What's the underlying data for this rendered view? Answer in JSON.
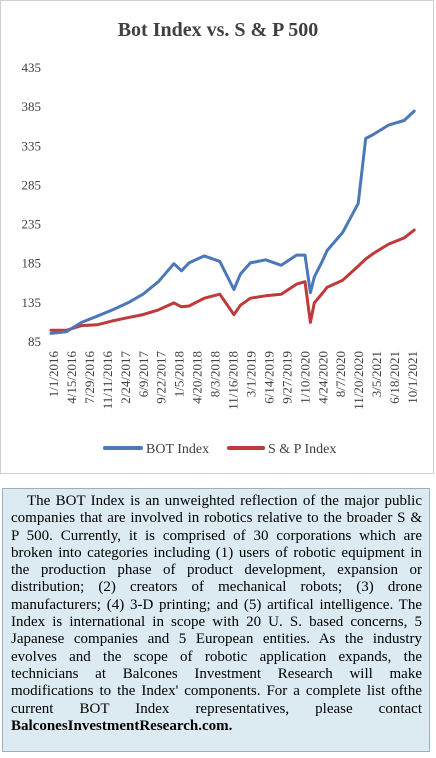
{
  "chart_data": {
    "type": "line",
    "title": "Bot Index vs. S & P 500",
    "xlabel": "",
    "ylabel": "",
    "ylim": [
      85,
      435
    ],
    "yticks": [
      85,
      135,
      185,
      235,
      285,
      335,
      385,
      435
    ],
    "grid": false,
    "legend_position": "bottom",
    "xtick_labels": [
      "1/1/2016",
      "4/15/2016",
      "7/29/2016",
      "11/11/2016",
      "2/24/2017",
      "6/9/2017",
      "9/22/2017",
      "1/5/2018",
      "4/20/2018",
      "8/3/2018",
      "11/16/2018",
      "3/1/2019",
      "6/14/2019",
      "9/27/2019",
      "1/10/2020",
      "4/24/2020",
      "8/7/2020",
      "11/20/2020",
      "3/5/2021",
      "6/18/2021",
      "10/1/2021"
    ],
    "x_dates": [
      "2016-01-01",
      "2016-04-01",
      "2016-07-01",
      "2016-10-01",
      "2017-01-01",
      "2017-04-01",
      "2017-07-01",
      "2017-10-01",
      "2018-01-01",
      "2018-02-15",
      "2018-04-01",
      "2018-07-01",
      "2018-10-01",
      "2018-12-24",
      "2019-02-01",
      "2019-04-01",
      "2019-07-01",
      "2019-10-01",
      "2020-01-01",
      "2020-02-20",
      "2020-03-23",
      "2020-04-15",
      "2020-06-01",
      "2020-07-01",
      "2020-10-01",
      "2021-01-01",
      "2021-02-15",
      "2021-04-01",
      "2021-07-01",
      "2021-10-01",
      "2021-11-30"
    ],
    "series": [
      {
        "name": "BOT Index",
        "color": "#4a78b8",
        "values": [
          96,
          98,
          110,
          118,
          126,
          135,
          146,
          162,
          185,
          176,
          186,
          195,
          188,
          152,
          172,
          186,
          190,
          183,
          196,
          196,
          148,
          168,
          188,
          202,
          225,
          262,
          345,
          350,
          362,
          368,
          380
        ]
      },
      {
        "name": "S & P Index",
        "color": "#c0393b",
        "values": [
          100,
          100,
          106,
          107,
          112,
          116,
          120,
          126,
          135,
          130,
          131,
          141,
          146,
          120,
          132,
          141,
          144,
          146,
          159,
          162,
          110,
          135,
          147,
          155,
          164,
          182,
          191,
          198,
          210,
          218,
          228
        ]
      }
    ]
  },
  "caption": {
    "text": "The BOT Index is an unweighted reflection of the major public companies that are involved in robotics relative to the broader S & P 500. Currently, it is comprised of 30 corporations which are broken into categories including (1) users of robotic equipment in the production phase of product development, expansion or distribution; (2) creators of mechanical robots; (3) drone manufacturers; (4) 3-D printing; and (5) artifical intelligence. The Index is international in scope with 20 U. S. based concerns, 5 Japanese companies and 5 European entities. As the industry evolves and the scope of robotic application expands, the technicians at Balcones Investment Research will make modifications to the Index' components. For a  complete list ofthe current BOT Index representatives, please contact",
    "link_text": "BalconesInvestmentResearch.com."
  }
}
